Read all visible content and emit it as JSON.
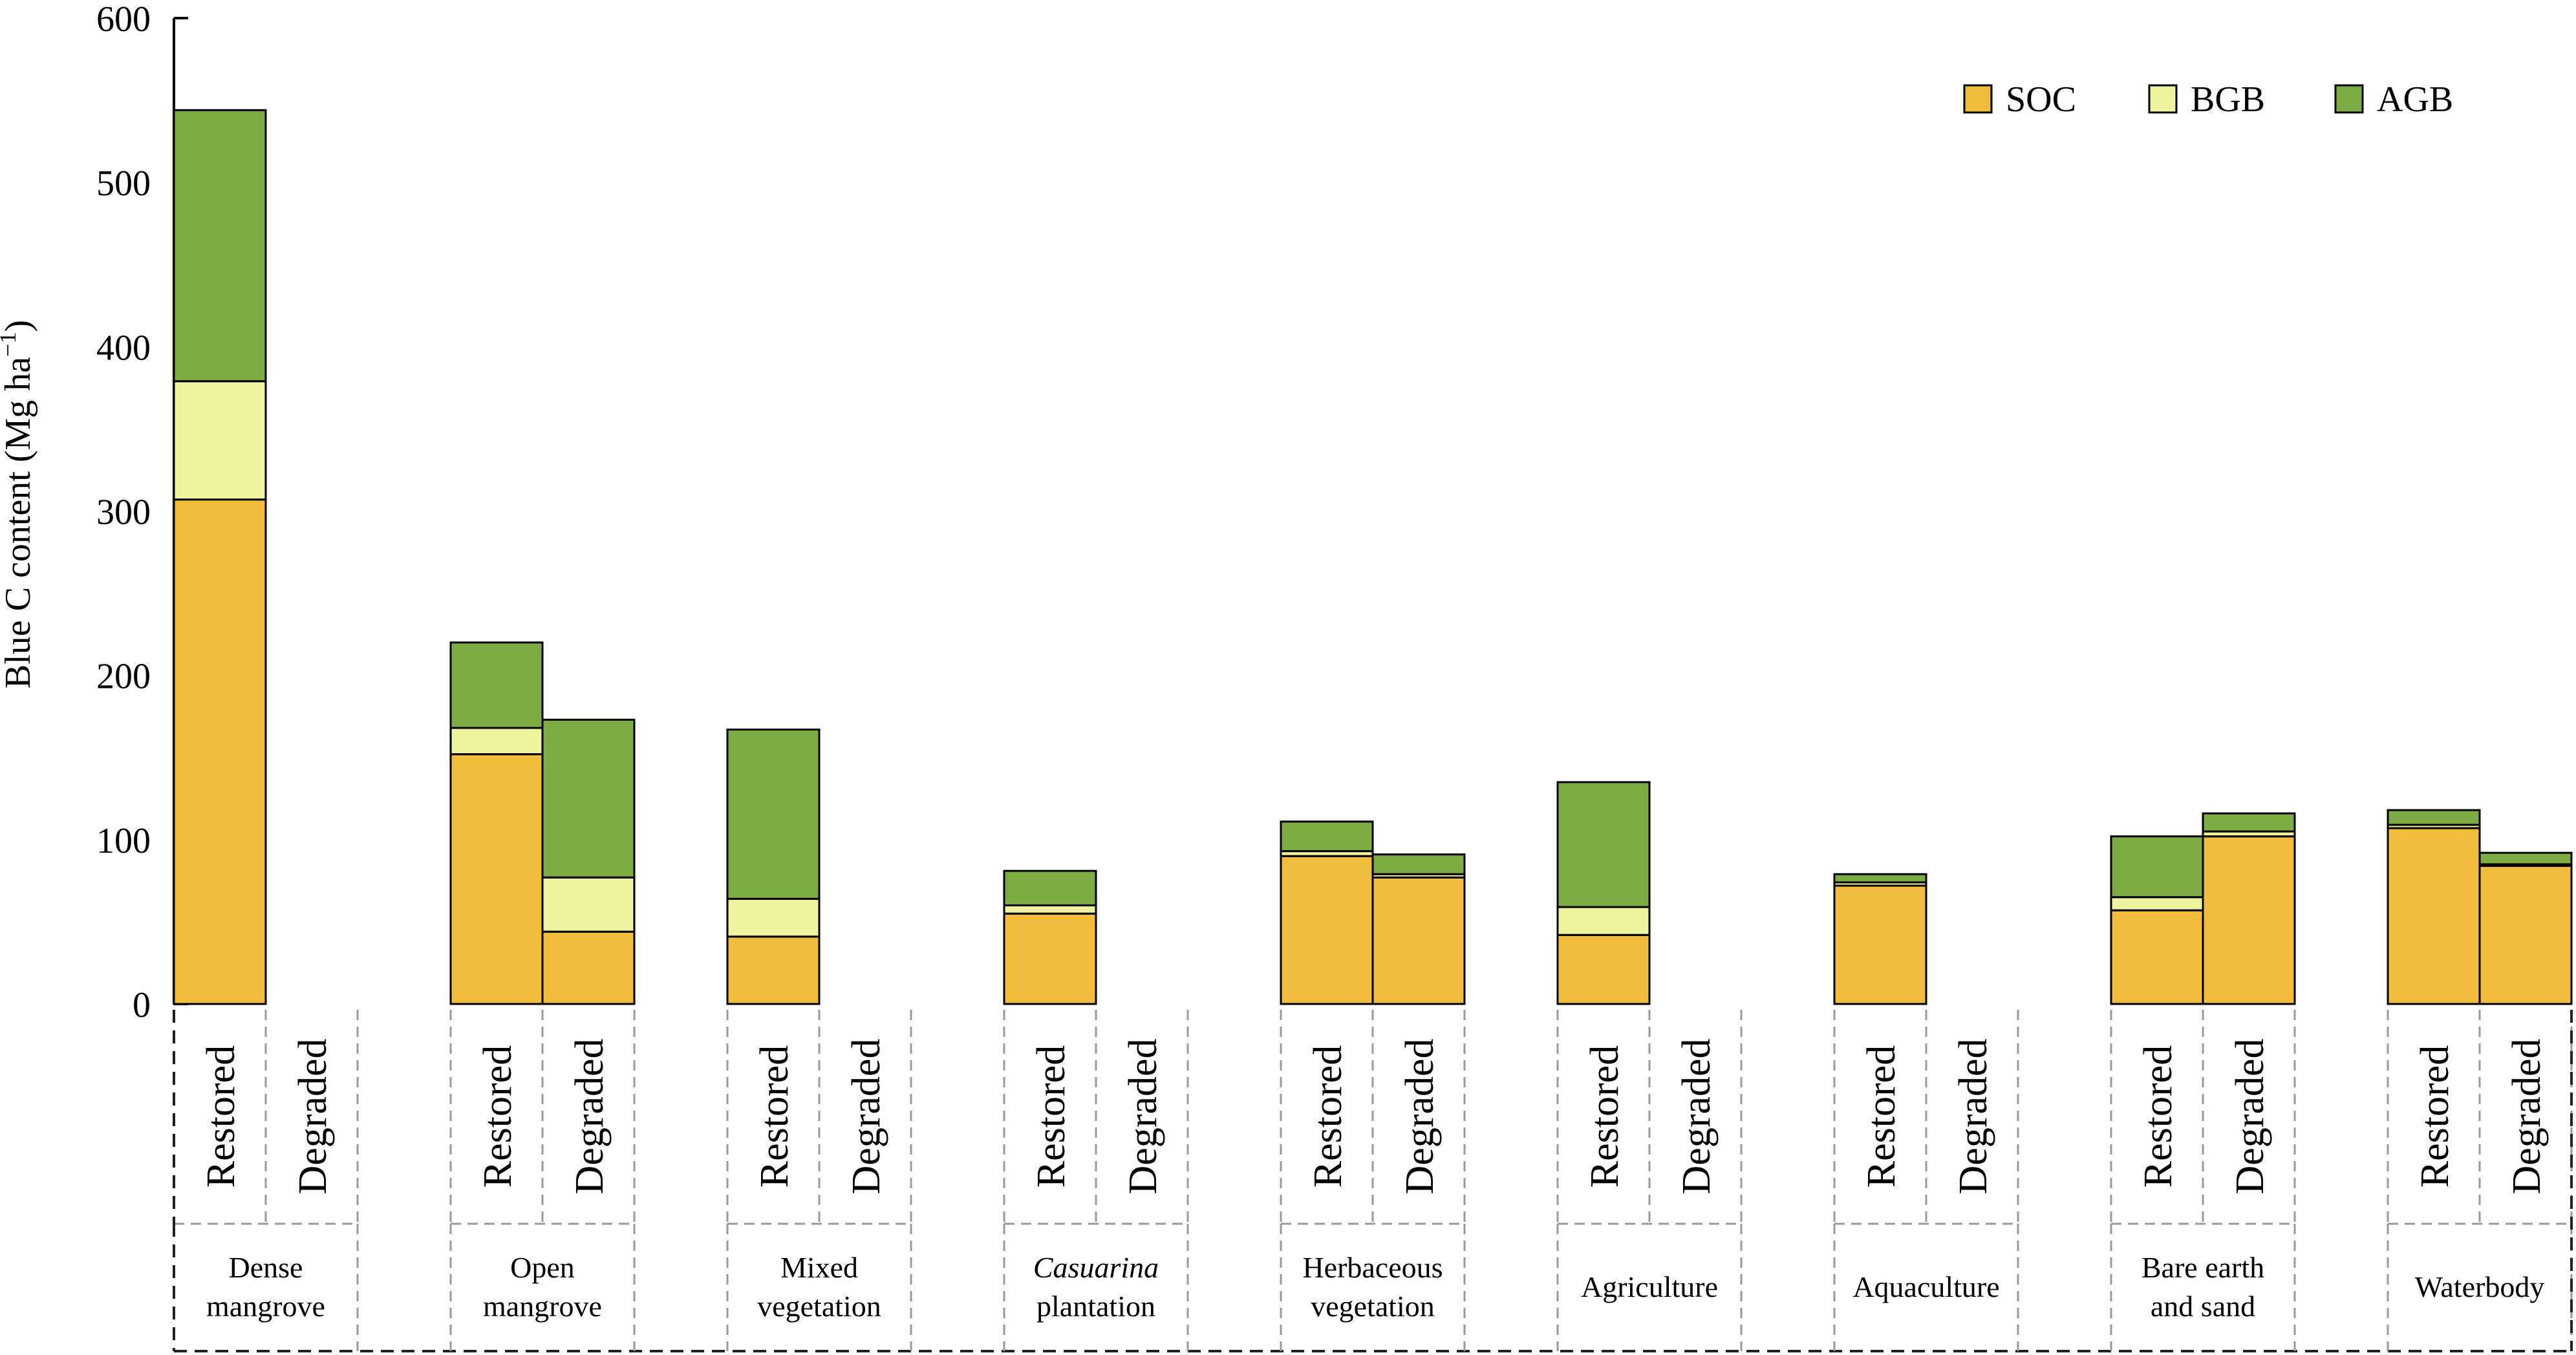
{
  "chart_data": {
    "type": "bar",
    "stacked": true,
    "title": "",
    "xlabel": "",
    "ylabel": "Blue C content (Mg ha",
    "ylabel_sup": "−1",
    "ylabel_close": ")",
    "ylim": [
      0,
      600
    ],
    "yticks": [
      0,
      100,
      200,
      300,
      400,
      500,
      600
    ],
    "grid": false,
    "legend_position": "top-right",
    "conditions": [
      "Restored",
      "Degraded"
    ],
    "categories": [
      {
        "lines": [
          "Dense",
          "mangrove"
        ]
      },
      {
        "lines": [
          "Open",
          "mangrove"
        ]
      },
      {
        "lines": [
          "Mixed",
          "vegetation"
        ]
      },
      {
        "lines": [
          "Casuarina",
          "plantation"
        ],
        "italic_first": true
      },
      {
        "lines": [
          "Herbaceous",
          "vegetation"
        ]
      },
      {
        "lines": [
          "Agriculture"
        ]
      },
      {
        "lines": [
          "Aquaculture"
        ]
      },
      {
        "lines": [
          "Bare earth",
          "and sand"
        ]
      },
      {
        "lines": [
          "Waterbody"
        ]
      }
    ],
    "series": [
      {
        "name": "SOC",
        "color": "#F2BD3D",
        "restored": [
          307,
          152,
          41,
          55,
          90,
          42,
          72,
          57,
          107
        ],
        "degraded": [
          0,
          44,
          0,
          0,
          77,
          0,
          0,
          102,
          84
        ]
      },
      {
        "name": "BGB",
        "color": "#EFF39E",
        "restored": [
          72,
          16,
          23,
          5,
          3,
          17,
          2,
          8,
          2
        ],
        "degraded": [
          0,
          33,
          0,
          0,
          2,
          0,
          0,
          3,
          1
        ]
      },
      {
        "name": "AGB",
        "color": "#7DAB44",
        "restored": [
          165,
          52,
          103,
          21,
          18,
          76,
          5,
          37,
          9
        ],
        "degraded": [
          0,
          96,
          0,
          0,
          12,
          0,
          0,
          11,
          7
        ]
      }
    ]
  }
}
